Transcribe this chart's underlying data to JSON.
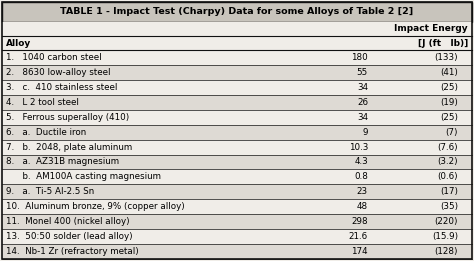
{
  "title": "TABLE 1 - Impact Test (Charpy) Data for some Alloys of Table 2 [2]",
  "rows": [
    {
      "alloy": "1.   1040 carbon steel",
      "j": "180",
      "ftlb": "(133)"
    },
    {
      "alloy": "2.   8630 low-alloy steel",
      "j": "55",
      "ftlb": "(41)"
    },
    {
      "alloy": "3.   c.  410 stainless steel",
      "j": "34",
      "ftlb": "(25)"
    },
    {
      "alloy": "4.   L 2 tool steel",
      "j": "26",
      "ftlb": "(19)"
    },
    {
      "alloy": "5.   Ferrous superalloy (410)",
      "j": "34",
      "ftlb": "(25)"
    },
    {
      "alloy": "6.   a.  Ductile iron",
      "j": "9",
      "ftlb": "(7)"
    },
    {
      "alloy": "7.   b.  2048, plate aluminum",
      "j": "10.3",
      "ftlb": "(7.6)"
    },
    {
      "alloy": "8.   a.  AZ31B magnesium",
      "j": "4.3",
      "ftlb": "(3.2)"
    },
    {
      "alloy": "      b.  AM100A casting magnesium",
      "j": "0.8",
      "ftlb": "(0.6)"
    },
    {
      "alloy": "9.   a.  Ti-5 Al-2.5 Sn",
      "j": "23",
      "ftlb": "(17)"
    },
    {
      "alloy": "10.  Aluminum bronze, 9% (copper alloy)",
      "j": "48",
      "ftlb": "(35)"
    },
    {
      "alloy": "11.  Monel 400 (nickel alloy)",
      "j": "298",
      "ftlb": "(220)"
    },
    {
      "alloy": "13.  50:50 solder (lead alloy)",
      "j": "21.6",
      "ftlb": "(15.9)"
    },
    {
      "alloy": "14.  Nb-1 Zr (refractory metal)",
      "j": "174",
      "ftlb": "(128)"
    }
  ],
  "bg_color": "#f0ede8",
  "header_bg": "#c8c4bc",
  "row_alt_bg": "#dedad4",
  "line_color": "#111111",
  "title_fontsize": 6.8,
  "header_fontsize": 6.5,
  "cell_fontsize": 6.3,
  "figsize": [
    4.74,
    2.61
  ],
  "dpi": 100
}
